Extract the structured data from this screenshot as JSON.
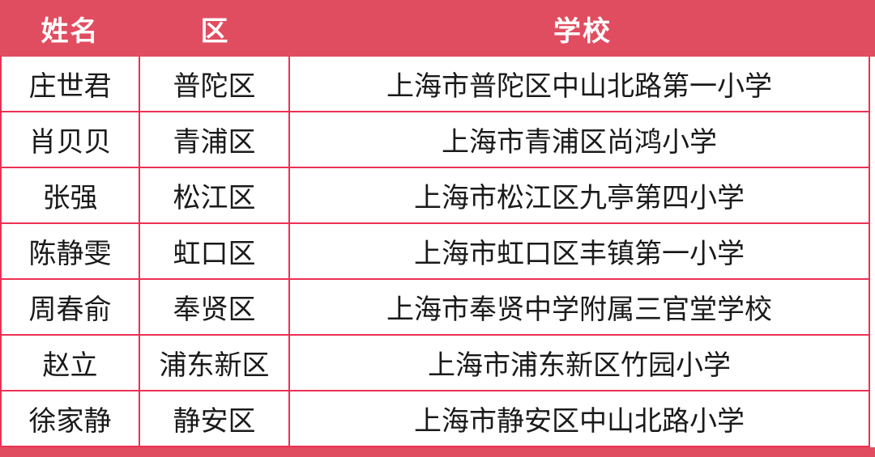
{
  "colors": {
    "header_bg": "#e14d60",
    "border": "#ec3154",
    "header_text": "#ffffff",
    "body_text": "#1a1a1a",
    "bottom_band": "#e14d60"
  },
  "table": {
    "columns": [
      {
        "key": "name",
        "label": "姓名"
      },
      {
        "key": "district",
        "label": "区"
      },
      {
        "key": "school",
        "label": "学校"
      }
    ],
    "rows": [
      {
        "name": "庄世君",
        "district": "普陀区",
        "school": "上海市普陀区中山北路第一小学"
      },
      {
        "name": "肖贝贝",
        "district": "青浦区",
        "school": "上海市青浦区尚鸿小学"
      },
      {
        "name": "张强",
        "district": "松江区",
        "school": "上海市松江区九亭第四小学"
      },
      {
        "name": "陈静雯",
        "district": "虹口区",
        "school": "上海市虹口区丰镇第一小学"
      },
      {
        "name": "周春俞",
        "district": "奉贤区",
        "school": "上海市奉贤中学附属三官堂学校"
      },
      {
        "name": "赵立",
        "district": "浦东新区",
        "school": "上海市浦东新区竹园小学"
      },
      {
        "name": "徐家静",
        "district": "静安区",
        "school": "上海市静安区中山北路小学"
      }
    ]
  }
}
